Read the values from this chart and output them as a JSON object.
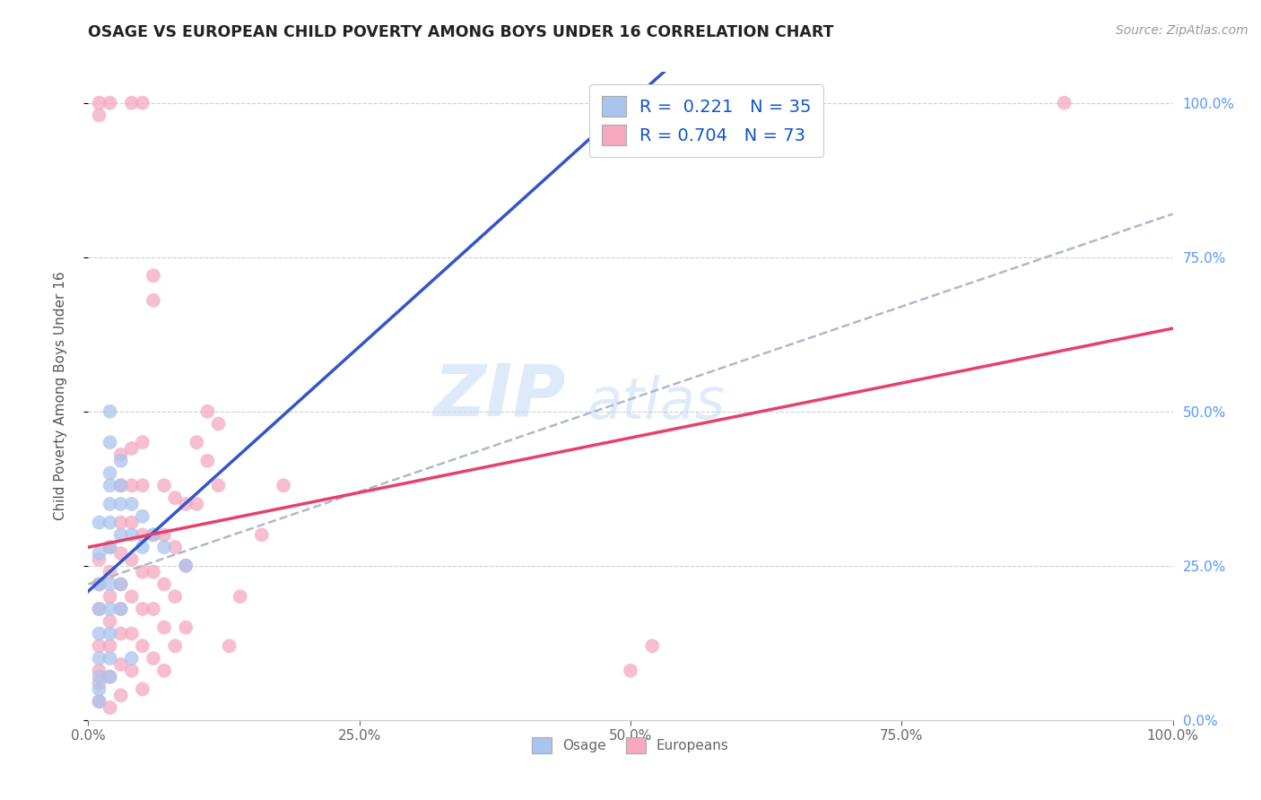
{
  "title": "OSAGE VS EUROPEAN CHILD POVERTY AMONG BOYS UNDER 16 CORRELATION CHART",
  "source": "Source: ZipAtlas.com",
  "ylabel": "Child Poverty Among Boys Under 16",
  "legend_label_osage": "R =  0.221   N = 35",
  "legend_label_euro": "R = 0.704   N = 73",
  "legend_label1": "Osage",
  "legend_label2": "Europeans",
  "watermark_zip": "ZIP",
  "watermark_atlas": "atlas",
  "background_color": "#ffffff",
  "grid_color": "#d0d0d0",
  "osage_color": "#aac4ee",
  "european_color": "#f5a8c0",
  "osage_line_color": "#3355cc",
  "european_line_color": "#e8406a",
  "dashed_line_color": "#b0b8c8",
  "osage_R": 0.221,
  "osage_N": 35,
  "european_R": 0.704,
  "european_N": 73,
  "osage_points": [
    [
      0.01,
      0.27
    ],
    [
      0.01,
      0.32
    ],
    [
      0.01,
      0.22
    ],
    [
      0.01,
      0.18
    ],
    [
      0.01,
      0.14
    ],
    [
      0.01,
      0.1
    ],
    [
      0.01,
      0.07
    ],
    [
      0.01,
      0.05
    ],
    [
      0.01,
      0.03
    ],
    [
      0.02,
      0.5
    ],
    [
      0.02,
      0.45
    ],
    [
      0.02,
      0.4
    ],
    [
      0.02,
      0.38
    ],
    [
      0.02,
      0.35
    ],
    [
      0.02,
      0.32
    ],
    [
      0.02,
      0.28
    ],
    [
      0.02,
      0.22
    ],
    [
      0.02,
      0.18
    ],
    [
      0.02,
      0.14
    ],
    [
      0.02,
      0.1
    ],
    [
      0.02,
      0.07
    ],
    [
      0.03,
      0.42
    ],
    [
      0.03,
      0.38
    ],
    [
      0.03,
      0.35
    ],
    [
      0.03,
      0.3
    ],
    [
      0.03,
      0.22
    ],
    [
      0.03,
      0.18
    ],
    [
      0.04,
      0.35
    ],
    [
      0.04,
      0.3
    ],
    [
      0.04,
      0.1
    ],
    [
      0.05,
      0.33
    ],
    [
      0.05,
      0.28
    ],
    [
      0.06,
      0.3
    ],
    [
      0.07,
      0.28
    ],
    [
      0.09,
      0.25
    ]
  ],
  "european_points": [
    [
      0.01,
      0.98
    ],
    [
      0.01,
      1.0
    ],
    [
      0.02,
      1.0
    ],
    [
      0.04,
      1.0
    ],
    [
      0.05,
      1.0
    ],
    [
      0.06,
      0.68
    ],
    [
      0.06,
      0.72
    ],
    [
      0.01,
      0.03
    ],
    [
      0.01,
      0.06
    ],
    [
      0.01,
      0.08
    ],
    [
      0.01,
      0.12
    ],
    [
      0.01,
      0.18
    ],
    [
      0.01,
      0.22
    ],
    [
      0.01,
      0.26
    ],
    [
      0.02,
      0.02
    ],
    [
      0.02,
      0.07
    ],
    [
      0.02,
      0.12
    ],
    [
      0.02,
      0.16
    ],
    [
      0.02,
      0.2
    ],
    [
      0.02,
      0.24
    ],
    [
      0.02,
      0.28
    ],
    [
      0.03,
      0.04
    ],
    [
      0.03,
      0.09
    ],
    [
      0.03,
      0.14
    ],
    [
      0.03,
      0.18
    ],
    [
      0.03,
      0.22
    ],
    [
      0.03,
      0.27
    ],
    [
      0.03,
      0.32
    ],
    [
      0.03,
      0.38
    ],
    [
      0.03,
      0.43
    ],
    [
      0.04,
      0.08
    ],
    [
      0.04,
      0.14
    ],
    [
      0.04,
      0.2
    ],
    [
      0.04,
      0.26
    ],
    [
      0.04,
      0.32
    ],
    [
      0.04,
      0.38
    ],
    [
      0.04,
      0.44
    ],
    [
      0.05,
      0.05
    ],
    [
      0.05,
      0.12
    ],
    [
      0.05,
      0.18
    ],
    [
      0.05,
      0.24
    ],
    [
      0.05,
      0.3
    ],
    [
      0.05,
      0.38
    ],
    [
      0.05,
      0.45
    ],
    [
      0.06,
      0.1
    ],
    [
      0.06,
      0.18
    ],
    [
      0.06,
      0.24
    ],
    [
      0.06,
      0.3
    ],
    [
      0.07,
      0.08
    ],
    [
      0.07,
      0.15
    ],
    [
      0.07,
      0.22
    ],
    [
      0.07,
      0.3
    ],
    [
      0.07,
      0.38
    ],
    [
      0.08,
      0.12
    ],
    [
      0.08,
      0.2
    ],
    [
      0.08,
      0.28
    ],
    [
      0.08,
      0.36
    ],
    [
      0.09,
      0.15
    ],
    [
      0.09,
      0.25
    ],
    [
      0.09,
      0.35
    ],
    [
      0.1,
      0.35
    ],
    [
      0.1,
      0.45
    ],
    [
      0.11,
      0.42
    ],
    [
      0.11,
      0.5
    ],
    [
      0.12,
      0.38
    ],
    [
      0.12,
      0.48
    ],
    [
      0.13,
      0.12
    ],
    [
      0.14,
      0.2
    ],
    [
      0.16,
      0.3
    ],
    [
      0.18,
      0.38
    ],
    [
      0.5,
      0.08
    ],
    [
      0.52,
      0.12
    ],
    [
      0.9,
      1.0
    ]
  ]
}
